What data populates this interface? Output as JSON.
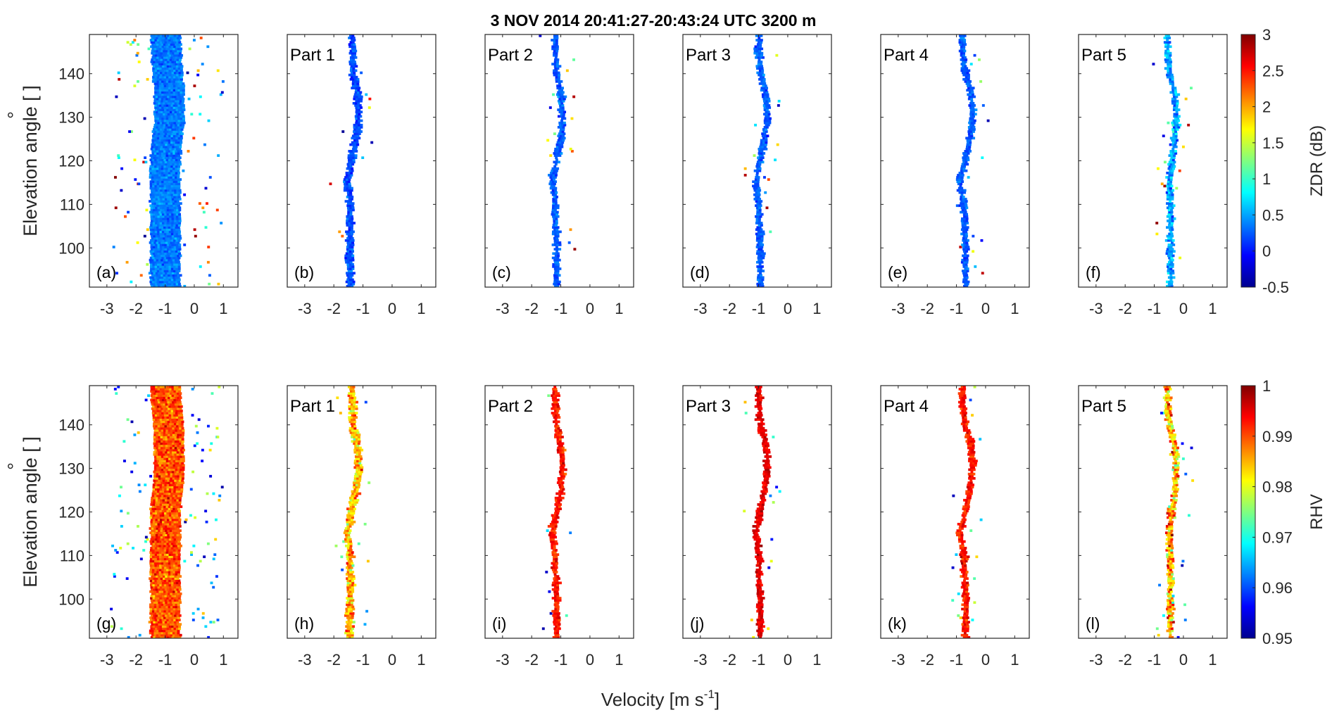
{
  "figure": {
    "title": "3 NOV 2014 20:41:27-20:43:24 UTC 3200 m",
    "xlabel": "Velocity [m s",
    "xlabel_sup": "-1",
    "xlabel_close": "]",
    "ylabel": "Elevation angle [ ]",
    "ylabel_degree": "°"
  },
  "colors": {
    "jet": [
      "#00008f",
      "#0000ff",
      "#0080ff",
      "#00ffff",
      "#80ff80",
      "#ffff00",
      "#ff8000",
      "#ff0000",
      "#800000"
    ]
  },
  "chart_data": [
    {
      "type": "heatmap",
      "description_key": "top-row",
      "variable": "ZDR",
      "colorbar": {
        "label": "ZDR (dB)",
        "range": [
          -0.5,
          3
        ],
        "ticks": [
          "3",
          "2.5",
          "2",
          "1.5",
          "1",
          "0.5",
          "0",
          "-0.5"
        ],
        "tick_values": [
          3,
          2.5,
          2,
          1.5,
          1,
          0.5,
          0,
          -0.5
        ]
      },
      "xlim": [
        -3.6,
        1.5
      ],
      "ylim": [
        91,
        149
      ],
      "xticks": [
        "-3",
        "-2",
        "-1",
        "0",
        "1"
      ],
      "xtick_values": [
        -3,
        -2,
        -1,
        0,
        1
      ],
      "yticks": [
        "140",
        "130",
        "120",
        "110",
        "100"
      ],
      "ytick_values": [
        140,
        130,
        120,
        110,
        100
      ],
      "panels": [
        {
          "letter": "(a)",
          "part": "",
          "center": [
            [
              91,
              -1.0
            ],
            [
              100,
              -1.0
            ],
            [
              110,
              -1.0
            ],
            [
              120,
              -1.0
            ],
            [
              130,
              -0.85
            ],
            [
              140,
              -0.9
            ],
            [
              149,
              -1.0
            ]
          ],
          "half_width": 0.5,
          "value_center": 0.35,
          "value_spread": 0.35
        },
        {
          "letter": "(b)",
          "part": "Part 1",
          "center": [
            [
              91,
              -1.45
            ],
            [
              100,
              -1.45
            ],
            [
              110,
              -1.45
            ],
            [
              115,
              -1.55
            ],
            [
              120,
              -1.4
            ],
            [
              125,
              -1.25
            ],
            [
              130,
              -1.15
            ],
            [
              135,
              -1.2
            ],
            [
              140,
              -1.35
            ],
            [
              145,
              -1.35
            ],
            [
              149,
              -1.4
            ]
          ],
          "half_width": 0.12,
          "value_center": 0.2,
          "value_spread": 0.25
        },
        {
          "letter": "(c)",
          "part": "Part 2",
          "center": [
            [
              91,
              -1.15
            ],
            [
              100,
              -1.15
            ],
            [
              110,
              -1.2
            ],
            [
              115,
              -1.3
            ],
            [
              120,
              -1.15
            ],
            [
              125,
              -1.0
            ],
            [
              130,
              -0.95
            ],
            [
              135,
              -1.0
            ],
            [
              140,
              -1.15
            ],
            [
              145,
              -1.2
            ],
            [
              149,
              -1.2
            ]
          ],
          "half_width": 0.1,
          "value_center": 0.25,
          "value_spread": 0.2
        },
        {
          "letter": "(d)",
          "part": "Part 3",
          "center": [
            [
              91,
              -0.95
            ],
            [
              100,
              -0.95
            ],
            [
              110,
              -1.0
            ],
            [
              115,
              -1.1
            ],
            [
              120,
              -0.95
            ],
            [
              125,
              -0.8
            ],
            [
              130,
              -0.7
            ],
            [
              135,
              -0.75
            ],
            [
              140,
              -0.95
            ],
            [
              145,
              -1.0
            ],
            [
              149,
              -1.0
            ]
          ],
          "half_width": 0.1,
          "value_center": 0.25,
          "value_spread": 0.2
        },
        {
          "letter": "(e)",
          "part": "Part 4",
          "center": [
            [
              91,
              -0.7
            ],
            [
              100,
              -0.7
            ],
            [
              110,
              -0.75
            ],
            [
              115,
              -0.9
            ],
            [
              120,
              -0.7
            ],
            [
              125,
              -0.55
            ],
            [
              130,
              -0.45
            ],
            [
              135,
              -0.5
            ],
            [
              140,
              -0.7
            ],
            [
              145,
              -0.8
            ],
            [
              149,
              -0.8
            ]
          ],
          "half_width": 0.1,
          "value_center": 0.25,
          "value_spread": 0.2
        },
        {
          "letter": "(f)",
          "part": "Part 5",
          "center": [
            [
              91,
              -0.45
            ],
            [
              100,
              -0.45
            ],
            [
              110,
              -0.45
            ],
            [
              115,
              -0.5
            ],
            [
              120,
              -0.4
            ],
            [
              125,
              -0.3
            ],
            [
              130,
              -0.25
            ],
            [
              135,
              -0.3
            ],
            [
              140,
              -0.5
            ],
            [
              145,
              -0.55
            ],
            [
              149,
              -0.55
            ]
          ],
          "half_width": 0.1,
          "value_center": 0.5,
          "value_spread": 0.4
        }
      ]
    },
    {
      "type": "heatmap",
      "description_key": "bottom-row",
      "variable": "RHV",
      "colorbar": {
        "label": "RHV",
        "range": [
          0.95,
          1
        ],
        "ticks": [
          "1",
          "0.99",
          "0.98",
          "0.97",
          "0.96",
          "0.95"
        ],
        "tick_values": [
          1,
          0.99,
          0.98,
          0.97,
          0.96,
          0.95
        ]
      },
      "xlim": [
        -3.6,
        1.5
      ],
      "ylim": [
        91,
        149
      ],
      "xticks": [
        "-3",
        "-2",
        "-1",
        "0",
        "1"
      ],
      "xtick_values": [
        -3,
        -2,
        -1,
        0,
        1
      ],
      "yticks": [
        "140",
        "130",
        "120",
        "110",
        "100"
      ],
      "ytick_values": [
        140,
        130,
        120,
        110,
        100
      ],
      "panels": [
        {
          "letter": "(g)",
          "part": "",
          "center": [
            [
              91,
              -1.0
            ],
            [
              100,
              -1.0
            ],
            [
              110,
              -1.0
            ],
            [
              120,
              -1.0
            ],
            [
              130,
              -0.85
            ],
            [
              140,
              -0.9
            ],
            [
              149,
              -1.0
            ]
          ],
          "half_width": 0.5,
          "value_center": 0.99,
          "value_spread": 0.01
        },
        {
          "letter": "(h)",
          "part": "Part 1",
          "center": [
            [
              91,
              -1.45
            ],
            [
              100,
              -1.45
            ],
            [
              110,
              -1.45
            ],
            [
              115,
              -1.55
            ],
            [
              120,
              -1.4
            ],
            [
              125,
              -1.25
            ],
            [
              130,
              -1.15
            ],
            [
              135,
              -1.2
            ],
            [
              140,
              -1.35
            ],
            [
              145,
              -1.35
            ],
            [
              149,
              -1.4
            ]
          ],
          "half_width": 0.12,
          "value_center": 0.985,
          "value_spread": 0.01
        },
        {
          "letter": "(i)",
          "part": "Part 2",
          "center": [
            [
              91,
              -1.15
            ],
            [
              100,
              -1.15
            ],
            [
              110,
              -1.2
            ],
            [
              115,
              -1.3
            ],
            [
              120,
              -1.15
            ],
            [
              125,
              -1.0
            ],
            [
              130,
              -0.95
            ],
            [
              135,
              -1.0
            ],
            [
              140,
              -1.15
            ],
            [
              145,
              -1.2
            ],
            [
              149,
              -1.2
            ]
          ],
          "half_width": 0.1,
          "value_center": 0.993,
          "value_spread": 0.004
        },
        {
          "letter": "(j)",
          "part": "Part 3",
          "center": [
            [
              91,
              -0.95
            ],
            [
              100,
              -0.95
            ],
            [
              110,
              -1.0
            ],
            [
              115,
              -1.1
            ],
            [
              120,
              -0.95
            ],
            [
              125,
              -0.8
            ],
            [
              130,
              -0.7
            ],
            [
              135,
              -0.75
            ],
            [
              140,
              -0.95
            ],
            [
              145,
              -1.0
            ],
            [
              149,
              -1.0
            ]
          ],
          "half_width": 0.1,
          "value_center": 0.995,
          "value_spread": 0.003
        },
        {
          "letter": "(k)",
          "part": "Part 4",
          "center": [
            [
              91,
              -0.7
            ],
            [
              100,
              -0.7
            ],
            [
              110,
              -0.75
            ],
            [
              115,
              -0.9
            ],
            [
              120,
              -0.7
            ],
            [
              125,
              -0.55
            ],
            [
              130,
              -0.45
            ],
            [
              135,
              -0.5
            ],
            [
              140,
              -0.7
            ],
            [
              145,
              -0.8
            ],
            [
              149,
              -0.8
            ]
          ],
          "half_width": 0.1,
          "value_center": 0.993,
          "value_spread": 0.004
        },
        {
          "letter": "(l)",
          "part": "Part 5",
          "center": [
            [
              91,
              -0.45
            ],
            [
              100,
              -0.45
            ],
            [
              110,
              -0.45
            ],
            [
              115,
              -0.5
            ],
            [
              120,
              -0.4
            ],
            [
              125,
              -0.3
            ],
            [
              130,
              -0.25
            ],
            [
              135,
              -0.3
            ],
            [
              140,
              -0.5
            ],
            [
              145,
              -0.55
            ],
            [
              149,
              -0.55
            ]
          ],
          "half_width": 0.1,
          "value_center": 0.985,
          "value_spread": 0.012
        }
      ]
    }
  ]
}
